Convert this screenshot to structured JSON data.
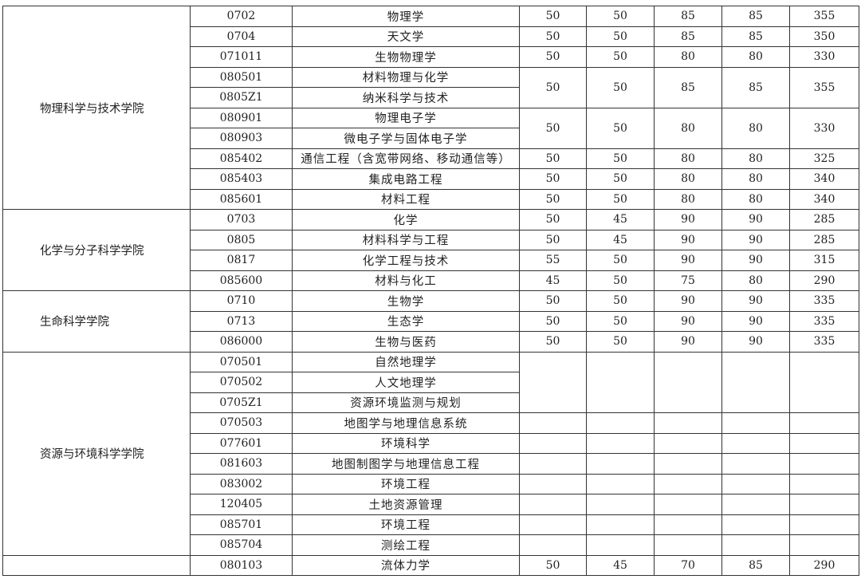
{
  "sections": [
    {
      "college": "物理科学与技术学院",
      "rows": [
        {
          "code": "0702",
          "name": "物理学",
          "scores": [
            "50",
            "50",
            "85",
            "85",
            "355"
          ],
          "span": 1
        },
        {
          "code": "0704",
          "name": "天文学",
          "scores": [
            "50",
            "50",
            "85",
            "85",
            "350"
          ],
          "span": 1
        },
        {
          "code": "071011",
          "name": "生物物理学",
          "scores": [
            "50",
            "50",
            "80",
            "80",
            "330"
          ],
          "span": 1
        },
        {
          "code": "080501",
          "name": "材料物理与化学",
          "scores": [
            "50",
            "50",
            "85",
            "85",
            "355"
          ],
          "span": 2
        },
        {
          "code": "0805Z1",
          "name": "纳米科学与技术",
          "scores": null
        },
        {
          "code": "080901",
          "name": "物理电子学",
          "scores": [
            "50",
            "50",
            "80",
            "80",
            "330"
          ],
          "span": 2
        },
        {
          "code": "080903",
          "name": "微电子学与固体电子学",
          "scores": null
        },
        {
          "code": "085402",
          "name": "通信工程（含宽带网络、移动通信等）",
          "scores": [
            "50",
            "50",
            "80",
            "80",
            "325"
          ],
          "span": 1
        },
        {
          "code": "085403",
          "name": "集成电路工程",
          "scores": [
            "50",
            "50",
            "80",
            "80",
            "340"
          ],
          "span": 1
        },
        {
          "code": "085601",
          "name": "材料工程",
          "scores": [
            "50",
            "50",
            "80",
            "80",
            "340"
          ],
          "span": 1
        }
      ]
    },
    {
      "college": "化学与分子科学学院",
      "rows": [
        {
          "code": "0703",
          "name": "化学",
          "scores": [
            "50",
            "45",
            "90",
            "90",
            "285"
          ],
          "span": 1
        },
        {
          "code": "0805",
          "name": "材料科学与工程",
          "scores": [
            "50",
            "45",
            "90",
            "90",
            "285"
          ],
          "span": 1
        },
        {
          "code": "0817",
          "name": "化学工程与技术",
          "scores": [
            "55",
            "50",
            "90",
            "90",
            "315"
          ],
          "span": 1
        },
        {
          "code": "085600",
          "name": "材料与化工",
          "scores": [
            "45",
            "50",
            "75",
            "80",
            "290"
          ],
          "span": 1
        }
      ]
    },
    {
      "college": "生命科学学院",
      "rows": [
        {
          "code": "0710",
          "name": "生物学",
          "scores": [
            "50",
            "50",
            "90",
            "90",
            "335"
          ],
          "span": 1
        },
        {
          "code": "0713",
          "name": "生态学",
          "scores": [
            "50",
            "50",
            "90",
            "90",
            "335"
          ],
          "span": 1
        },
        {
          "code": "086000",
          "name": "生物与医药",
          "scores": [
            "50",
            "50",
            "90",
            "90",
            "335"
          ],
          "span": 1
        }
      ]
    },
    {
      "college": "资源与环境科学学院",
      "rows": [
        {
          "code": "070501",
          "name": "自然地理学",
          "scores": [
            "",
            "",
            "",
            "",
            ""
          ],
          "span": 3
        },
        {
          "code": "070502",
          "name": "人文地理学",
          "scores": null
        },
        {
          "code": "0705Z1",
          "name": "资源环境监测与规划",
          "scores": null
        },
        {
          "code": "070503",
          "name": "地图学与地理信息系统",
          "scores": [
            "",
            "",
            "",
            "",
            ""
          ],
          "span": 1
        },
        {
          "code": "077601",
          "name": "环境科学",
          "scores": [
            "",
            "",
            "",
            "",
            ""
          ],
          "span": 1
        },
        {
          "code": "081603",
          "name": "地图制图学与地理信息工程",
          "scores": [
            "",
            "",
            "",
            "",
            ""
          ],
          "span": 1
        },
        {
          "code": "083002",
          "name": "环境工程",
          "scores": [
            "",
            "",
            "",
            "",
            ""
          ],
          "span": 1
        },
        {
          "code": "120405",
          "name": "土地资源管理",
          "scores": [
            "",
            "",
            "",
            "",
            ""
          ],
          "span": 1
        },
        {
          "code": "085701",
          "name": "环境工程",
          "scores": [
            "",
            "",
            "",
            "",
            ""
          ],
          "span": 1
        },
        {
          "code": "085704",
          "name": "测绘工程",
          "scores": [
            "",
            "",
            "",
            "",
            ""
          ],
          "span": 1
        }
      ]
    },
    {
      "college": "",
      "rows": [
        {
          "code": "080103",
          "name": "流体力学",
          "scores": [
            "50",
            "45",
            "70",
            "85",
            "290"
          ],
          "span": 1
        }
      ]
    }
  ]
}
